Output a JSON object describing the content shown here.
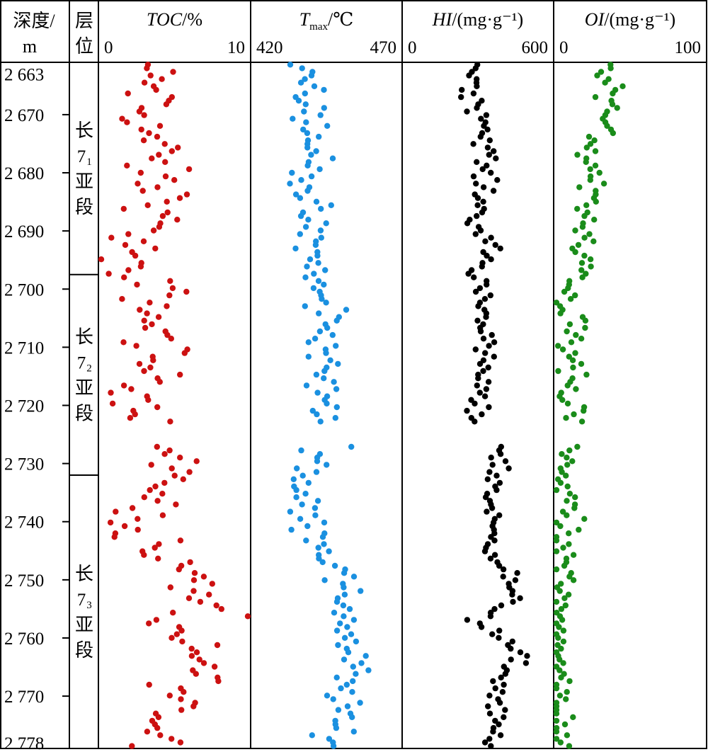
{
  "header": {
    "depth_label_line1": "深度/",
    "depth_label_line2": "m",
    "layer_label_line1": "层",
    "layer_label_line2": "位"
  },
  "colors": {
    "toc": "#cc1111",
    "tmax": "#1a90e0",
    "hi": "#000000",
    "oi": "#1a8c1a",
    "frame": "#000000"
  },
  "depth_axis": {
    "range": [
      2661,
      2779
    ],
    "ticks": [
      {
        "value": 2663,
        "label": "2 663",
        "tick": false
      },
      {
        "value": 2670,
        "label": "2 670",
        "tick": true
      },
      {
        "value": 2680,
        "label": "2 680",
        "tick": true
      },
      {
        "value": 2690,
        "label": "2 690",
        "tick": true
      },
      {
        "value": 2700,
        "label": "2 700",
        "tick": true
      },
      {
        "value": 2710,
        "label": "2 710",
        "tick": true
      },
      {
        "value": 2720,
        "label": "2 720",
        "tick": true
      },
      {
        "value": 2730,
        "label": "2 730",
        "tick": true
      },
      {
        "value": 2740,
        "label": "2 740",
        "tick": true
      },
      {
        "value": 2750,
        "label": "2 750",
        "tick": true
      },
      {
        "value": 2760,
        "label": "2 760",
        "tick": true
      },
      {
        "value": 2770,
        "label": "2 770",
        "tick": true
      },
      {
        "value": 2778,
        "label": "2 778",
        "tick": false
      }
    ]
  },
  "zones": [
    {
      "char": "长",
      "sub": "1",
      "suffix1": "亚",
      "suffix2": "段",
      "top": 2661,
      "bottom": 2697.5
    },
    {
      "char": "长",
      "sub": "2",
      "suffix1": "亚",
      "suffix2": "段",
      "top": 2697.5,
      "bottom": 2732
    },
    {
      "char": "长",
      "sub": "3",
      "suffix1": "亚",
      "suffix2": "段",
      "top": 2732,
      "bottom": 2779
    }
  ],
  "chart_data": {
    "type": "scatter",
    "y_axis": {
      "label": "深度/m",
      "range": [
        2661,
        2779
      ],
      "inverted": true
    },
    "gap_depths": [
      2723,
      2727
    ],
    "tracks": [
      {
        "name": "TOC",
        "title_main": "TOC",
        "title_unit": "/%",
        "xlim": [
          0,
          10
        ],
        "tick_left": "0",
        "tick_right": "10",
        "color": "#cc1111",
        "profile": [
          [
            2661,
            3.0
          ],
          [
            2665,
            3.5
          ],
          [
            2670,
            3.0
          ],
          [
            2674,
            3.5
          ],
          [
            2680,
            3.5
          ],
          [
            2685,
            4.5
          ],
          [
            2690,
            3.0
          ],
          [
            2694,
            2.0
          ],
          [
            2697,
            0.8
          ],
          [
            2700,
            4.0
          ],
          [
            2705,
            3.5
          ],
          [
            2710,
            4.0
          ],
          [
            2715,
            3.0
          ],
          [
            2720,
            3.5
          ],
          [
            2723,
            3.0
          ],
          [
            2727,
            4.5
          ],
          [
            2730,
            4.2
          ],
          [
            2735,
            4.5
          ],
          [
            2738,
            2.8
          ],
          [
            2742,
            3.0
          ],
          [
            2746,
            4.0
          ],
          [
            2750,
            6.0
          ],
          [
            2754,
            7.5
          ],
          [
            2757,
            3.5
          ],
          [
            2760,
            5.0
          ],
          [
            2763,
            6.5
          ],
          [
            2766,
            7.0
          ],
          [
            2770,
            5.0
          ],
          [
            2775,
            4.5
          ],
          [
            2779,
            4.0
          ]
        ],
        "noise": 1.1
      },
      {
        "name": "Tmax",
        "title_main": "T",
        "title_sub": "max",
        "title_unit": "/℃",
        "xlim": [
          420,
          470
        ],
        "tick_left": "420",
        "tick_right": "470",
        "color": "#1a90e0",
        "profile": [
          [
            2661,
            440
          ],
          [
            2670,
            441
          ],
          [
            2680,
            440
          ],
          [
            2688,
            438
          ],
          [
            2693,
            440
          ],
          [
            2697,
            441
          ],
          [
            2700,
            441
          ],
          [
            2705,
            445
          ],
          [
            2710,
            445
          ],
          [
            2715,
            443
          ],
          [
            2720,
            445
          ],
          [
            2723,
            447
          ],
          [
            2727,
            446
          ],
          [
            2732,
            439
          ],
          [
            2737,
            436
          ],
          [
            2740,
            441
          ],
          [
            2745,
            445
          ],
          [
            2750,
            449
          ],
          [
            2755,
            452
          ],
          [
            2760,
            452
          ],
          [
            2765,
            453
          ],
          [
            2770,
            451
          ],
          [
            2775,
            448
          ],
          [
            2779,
            447
          ]
        ],
        "noise": 3.2
      },
      {
        "name": "HI",
        "title_main": "HI",
        "title_unit": "/(mg·g⁻¹)",
        "xlim": [
          0,
          600
        ],
        "tick_left": "0",
        "tick_right": "600",
        "color": "#000000",
        "profile": [
          [
            2661,
            300
          ],
          [
            2667,
            280
          ],
          [
            2672,
            330
          ],
          [
            2680,
            330
          ],
          [
            2688,
            300
          ],
          [
            2694,
            340
          ],
          [
            2697,
            290
          ],
          [
            2700,
            310
          ],
          [
            2705,
            330
          ],
          [
            2710,
            330
          ],
          [
            2715,
            310
          ],
          [
            2720,
            300
          ],
          [
            2723,
            290
          ],
          [
            2727,
            400
          ],
          [
            2732,
            370
          ],
          [
            2737,
            350
          ],
          [
            2742,
            360
          ],
          [
            2746,
            380
          ],
          [
            2750,
            420
          ],
          [
            2754,
            430
          ],
          [
            2757,
            300
          ],
          [
            2760,
            380
          ],
          [
            2764,
            470
          ],
          [
            2766,
            400
          ],
          [
            2770,
            380
          ],
          [
            2775,
            360
          ],
          [
            2779,
            350
          ]
        ],
        "noise": 22
      },
      {
        "name": "OI",
        "title_main": "OI",
        "title_unit": "/(mg·g⁻¹)",
        "xlim": [
          0,
          100
        ],
        "tick_left": "0",
        "tick_right": "100",
        "color": "#1a8c1a",
        "profile": [
          [
            2661,
            35
          ],
          [
            2668,
            38
          ],
          [
            2675,
            25
          ],
          [
            2682,
            25
          ],
          [
            2688,
            20
          ],
          [
            2694,
            15
          ],
          [
            2697,
            20
          ],
          [
            2700,
            12
          ],
          [
            2705,
            10
          ],
          [
            2710,
            10
          ],
          [
            2715,
            10
          ],
          [
            2720,
            10
          ],
          [
            2723,
            8
          ],
          [
            2727,
            6
          ],
          [
            2732,
            6
          ],
          [
            2737,
            10
          ],
          [
            2742,
            6
          ],
          [
            2750,
            5
          ],
          [
            2758,
            5
          ],
          [
            2765,
            4
          ],
          [
            2770,
            4
          ],
          [
            2779,
            4
          ]
        ],
        "noise": 5
      }
    ]
  }
}
